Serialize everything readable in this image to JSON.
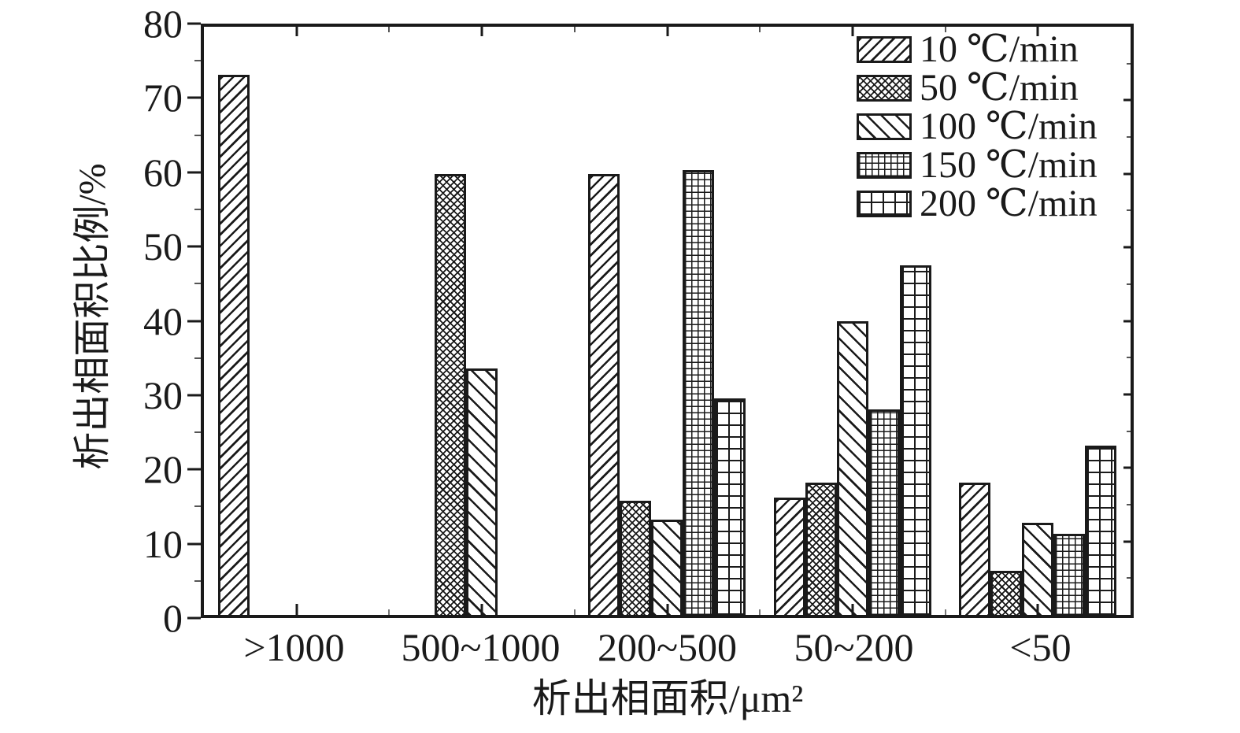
{
  "figure": {
    "background": "#ffffff",
    "ink_color": "#1a1a1a"
  },
  "chart_data": {
    "type": "bar",
    "title": "",
    "xlabel": "析出相面积/μm²",
    "ylabel": "析出相面积比例/%",
    "categories": [
      ">1000",
      "500~1000",
      "200~500",
      "50~200",
      "<50"
    ],
    "series": [
      {
        "name": "10 ℃/min",
        "hatch": "diag-forward",
        "values": [
          73.5,
          0,
          60,
          16,
          18
        ]
      },
      {
        "name": "50 ℃/min",
        "hatch": "crosshatch-dense",
        "values": [
          0,
          60,
          15.5,
          18,
          6
        ]
      },
      {
        "name": "100 ℃/min",
        "hatch": "diag-backward",
        "values": [
          0,
          33.5,
          13,
          40,
          12.5
        ]
      },
      {
        "name": "150 ℃/min",
        "hatch": "grid-fine",
        "values": [
          0,
          0,
          60.5,
          28,
          11
        ]
      },
      {
        "name": "200 ℃/min",
        "hatch": "grid-coarse",
        "values": [
          0,
          0,
          29.5,
          47.5,
          23
        ]
      }
    ],
    "ylim": [
      0,
      80
    ],
    "yticks": [
      0,
      10,
      20,
      30,
      40,
      50,
      60,
      70,
      80
    ],
    "y_minor_step": 5,
    "grid": false,
    "legend_position": "top-right"
  }
}
